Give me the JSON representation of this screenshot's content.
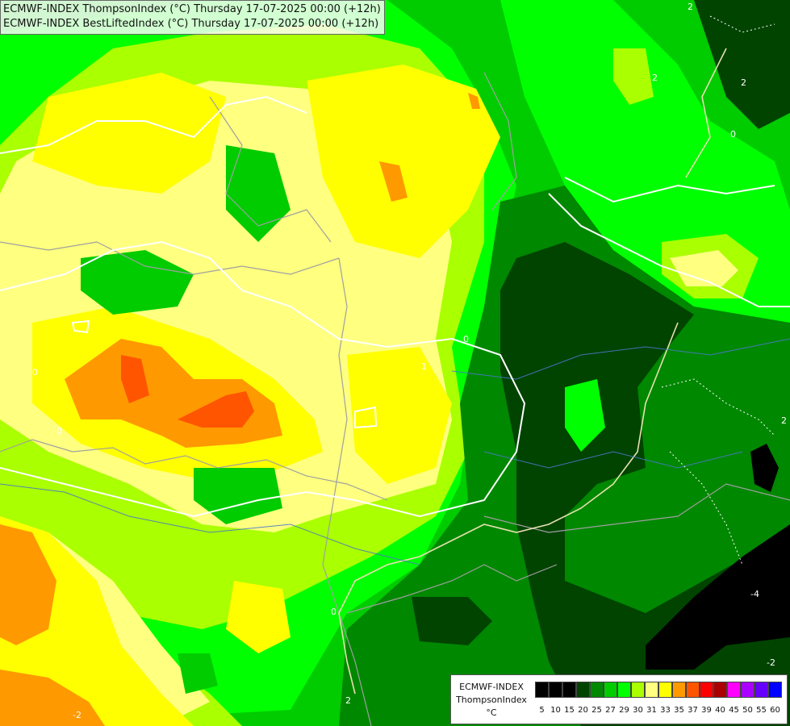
{
  "header": {
    "line1": "ECMWF-INDEX ThompsonIndex (°C) Thursday 17-07-2025 00:00 (+12h)",
    "line2": "ECMWF-INDEX BestLiftedIndex (°C) Thursday 17-07-2025 00:00 (+12h)"
  },
  "legend": {
    "title": "ECMWF-INDEX",
    "subtitle": "ThompsonIndex",
    "unit": "°C",
    "classes": [
      {
        "label": "5",
        "color": "#000000"
      },
      {
        "label": "10",
        "color": "#000000"
      },
      {
        "label": "15",
        "color": "#000000"
      },
      {
        "label": "20",
        "color": "#004400"
      },
      {
        "label": "25",
        "color": "#008800"
      },
      {
        "label": "27",
        "color": "#00cc00"
      },
      {
        "label": "29",
        "color": "#00ff00"
      },
      {
        "label": "30",
        "color": "#aaff00"
      },
      {
        "label": "31",
        "color": "#ffff80"
      },
      {
        "label": "33",
        "color": "#ffff00"
      },
      {
        "label": "35",
        "color": "#ff9900"
      },
      {
        "label": "37",
        "color": "#ff5500"
      },
      {
        "label": "39",
        "color": "#ff0000"
      },
      {
        "label": "40",
        "color": "#aa0000"
      },
      {
        "label": "45",
        "color": "#ff00ff"
      },
      {
        "label": "50",
        "color": "#aa00ff"
      },
      {
        "label": "55",
        "color": "#6600ff"
      },
      {
        "label": "60",
        "color": "#0000ff"
      }
    ]
  },
  "contour_labels": [
    "2",
    "2",
    "0",
    "2",
    "2",
    "-2",
    "-4",
    "2",
    "0",
    "0",
    "0",
    "0",
    "1",
    "-2"
  ]
}
